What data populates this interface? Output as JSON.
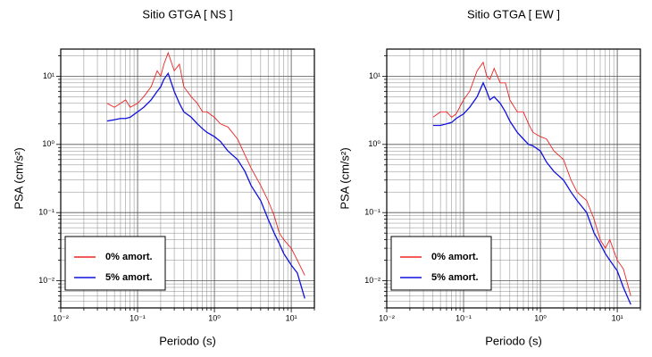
{
  "chart_data": [
    {
      "type": "line",
      "title": "Sitio GTGA [ NS ]",
      "x_label": "Periodo (s)",
      "y_label": "PSA (cm/s²)",
      "log_x": true,
      "log_y": true,
      "grid": true,
      "legend": "lower left",
      "xlim": [
        0.01,
        20
      ],
      "ylim": [
        0.004,
        25
      ],
      "xticks": [
        {
          "value": 0.01,
          "label": "10⁻²"
        },
        {
          "value": 0.02,
          "label": null
        },
        {
          "value": 0.03,
          "label": null
        },
        {
          "value": 0.04,
          "label": null
        },
        {
          "value": 0.05,
          "label": null
        },
        {
          "value": 0.06,
          "label": null
        },
        {
          "value": 0.07,
          "label": null
        },
        {
          "value": 0.08,
          "label": null
        },
        {
          "value": 0.09,
          "label": null
        },
        {
          "value": 0.1,
          "label": "10⁻¹"
        },
        {
          "value": 0.2,
          "label": null
        },
        {
          "value": 0.3,
          "label": null
        },
        {
          "value": 0.4,
          "label": null
        },
        {
          "value": 0.5,
          "label": null
        },
        {
          "value": 0.6,
          "label": null
        },
        {
          "value": 0.7,
          "label": null
        },
        {
          "value": 0.8,
          "label": null
        },
        {
          "value": 0.9,
          "label": null
        },
        {
          "value": 1,
          "label": "10⁰"
        },
        {
          "value": 2,
          "label": null
        },
        {
          "value": 3,
          "label": null
        },
        {
          "value": 4,
          "label": null
        },
        {
          "value": 5,
          "label": null
        },
        {
          "value": 6,
          "label": null
        },
        {
          "value": 7,
          "label": null
        },
        {
          "value": 8,
          "label": null
        },
        {
          "value": 9,
          "label": null
        },
        {
          "value": 10,
          "label": "10¹"
        },
        {
          "value": 20,
          "label": null
        }
      ],
      "yticks": [
        {
          "value": 0.004,
          "label": null
        },
        {
          "value": 0.005,
          "label": null
        },
        {
          "value": 0.006,
          "label": null
        },
        {
          "value": 0.007,
          "label": null
        },
        {
          "value": 0.008,
          "label": null
        },
        {
          "value": 0.009,
          "label": null
        },
        {
          "value": 0.01,
          "label": "10⁻²"
        },
        {
          "value": 0.02,
          "label": null
        },
        {
          "value": 0.03,
          "label": null
        },
        {
          "value": 0.04,
          "label": null
        },
        {
          "value": 0.05,
          "label": null
        },
        {
          "value": 0.06,
          "label": null
        },
        {
          "value": 0.07,
          "label": null
        },
        {
          "value": 0.08,
          "label": null
        },
        {
          "value": 0.09,
          "label": null
        },
        {
          "value": 0.1,
          "label": "10⁻¹"
        },
        {
          "value": 0.2,
          "label": null
        },
        {
          "value": 0.3,
          "label": null
        },
        {
          "value": 0.4,
          "label": null
        },
        {
          "value": 0.5,
          "label": null
        },
        {
          "value": 0.6,
          "label": null
        },
        {
          "value": 0.7,
          "label": null
        },
        {
          "value": 0.8,
          "label": null
        },
        {
          "value": 0.9,
          "label": null
        },
        {
          "value": 1,
          "label": "10⁰"
        },
        {
          "value": 2,
          "label": null
        },
        {
          "value": 3,
          "label": null
        },
        {
          "value": 4,
          "label": null
        },
        {
          "value": 5,
          "label": null
        },
        {
          "value": 6,
          "label": null
        },
        {
          "value": 7,
          "label": null
        },
        {
          "value": 8,
          "label": null
        },
        {
          "value": 9,
          "label": null
        },
        {
          "value": 10,
          "label": "10¹"
        },
        {
          "value": 20,
          "label": null
        }
      ],
      "x": [
        0.04,
        0.05,
        0.06,
        0.07,
        0.08,
        0.1,
        0.12,
        0.15,
        0.18,
        0.2,
        0.22,
        0.25,
        0.3,
        0.35,
        0.4,
        0.5,
        0.6,
        0.7,
        0.8,
        1,
        1.2,
        1.5,
        2,
        2.5,
        3,
        4,
        5,
        6,
        7,
        8,
        10,
        12,
        15
      ],
      "series": [
        {
          "name": "0% amort.",
          "color": "#ee2222",
          "values": [
            4,
            3.5,
            4,
            4.5,
            3.5,
            4,
            5,
            7,
            12,
            10,
            15,
            22,
            12,
            15,
            7,
            5,
            4,
            3,
            3,
            2.5,
            2,
            1.8,
            1.2,
            0.7,
            0.45,
            0.25,
            0.15,
            0.09,
            0.05,
            0.04,
            0.03,
            0.02,
            0.012
          ]
        },
        {
          "name": "5% amort.",
          "color": "#1111dd",
          "values": [
            2.2,
            2.3,
            2.4,
            2.4,
            2.5,
            3,
            3.5,
            4.5,
            6,
            7,
            9,
            11,
            6,
            4,
            3,
            2.5,
            2,
            1.7,
            1.5,
            1.3,
            1.1,
            0.8,
            0.6,
            0.4,
            0.25,
            0.15,
            0.08,
            0.05,
            0.035,
            0.025,
            0.017,
            0.013,
            0.0055
          ]
        }
      ]
    },
    {
      "type": "line",
      "title": "Sitio GTGA [ EW ]",
      "x_label": "Periodo (s)",
      "y_label": "PSA (cm/s²)",
      "log_x": true,
      "log_y": true,
      "grid": true,
      "legend": "lower left",
      "xlim": [
        0.01,
        20
      ],
      "ylim": [
        0.004,
        25
      ],
      "xticks": [
        {
          "value": 0.01,
          "label": "10⁻²"
        },
        {
          "value": 0.02,
          "label": null
        },
        {
          "value": 0.03,
          "label": null
        },
        {
          "value": 0.04,
          "label": null
        },
        {
          "value": 0.05,
          "label": null
        },
        {
          "value": 0.06,
          "label": null
        },
        {
          "value": 0.07,
          "label": null
        },
        {
          "value": 0.08,
          "label": null
        },
        {
          "value": 0.09,
          "label": null
        },
        {
          "value": 0.1,
          "label": "10⁻¹"
        },
        {
          "value": 0.2,
          "label": null
        },
        {
          "value": 0.3,
          "label": null
        },
        {
          "value": 0.4,
          "label": null
        },
        {
          "value": 0.5,
          "label": null
        },
        {
          "value": 0.6,
          "label": null
        },
        {
          "value": 0.7,
          "label": null
        },
        {
          "value": 0.8,
          "label": null
        },
        {
          "value": 0.9,
          "label": null
        },
        {
          "value": 1,
          "label": "10⁰"
        },
        {
          "value": 2,
          "label": null
        },
        {
          "value": 3,
          "label": null
        },
        {
          "value": 4,
          "label": null
        },
        {
          "value": 5,
          "label": null
        },
        {
          "value": 6,
          "label": null
        },
        {
          "value": 7,
          "label": null
        },
        {
          "value": 8,
          "label": null
        },
        {
          "value": 9,
          "label": null
        },
        {
          "value": 10,
          "label": "10¹"
        },
        {
          "value": 20,
          "label": null
        }
      ],
      "yticks": [
        {
          "value": 0.004,
          "label": null
        },
        {
          "value": 0.005,
          "label": null
        },
        {
          "value": 0.006,
          "label": null
        },
        {
          "value": 0.007,
          "label": null
        },
        {
          "value": 0.008,
          "label": null
        },
        {
          "value": 0.009,
          "label": null
        },
        {
          "value": 0.01,
          "label": "10⁻²"
        },
        {
          "value": 0.02,
          "label": null
        },
        {
          "value": 0.03,
          "label": null
        },
        {
          "value": 0.04,
          "label": null
        },
        {
          "value": 0.05,
          "label": null
        },
        {
          "value": 0.06,
          "label": null
        },
        {
          "value": 0.07,
          "label": null
        },
        {
          "value": 0.08,
          "label": null
        },
        {
          "value": 0.09,
          "label": null
        },
        {
          "value": 0.1,
          "label": "10⁻¹"
        },
        {
          "value": 0.2,
          "label": null
        },
        {
          "value": 0.3,
          "label": null
        },
        {
          "value": 0.4,
          "label": null
        },
        {
          "value": 0.5,
          "label": null
        },
        {
          "value": 0.6,
          "label": null
        },
        {
          "value": 0.7,
          "label": null
        },
        {
          "value": 0.8,
          "label": null
        },
        {
          "value": 0.9,
          "label": null
        },
        {
          "value": 1,
          "label": "10⁰"
        },
        {
          "value": 2,
          "label": null
        },
        {
          "value": 3,
          "label": null
        },
        {
          "value": 4,
          "label": null
        },
        {
          "value": 5,
          "label": null
        },
        {
          "value": 6,
          "label": null
        },
        {
          "value": 7,
          "label": null
        },
        {
          "value": 8,
          "label": null
        },
        {
          "value": 9,
          "label": null
        },
        {
          "value": 10,
          "label": "10¹"
        },
        {
          "value": 20,
          "label": null
        }
      ],
      "x": [
        0.04,
        0.05,
        0.06,
        0.07,
        0.08,
        0.1,
        0.12,
        0.15,
        0.18,
        0.2,
        0.22,
        0.25,
        0.3,
        0.35,
        0.4,
        0.5,
        0.6,
        0.7,
        0.8,
        1,
        1.2,
        1.5,
        2,
        2.5,
        3,
        4,
        5,
        6,
        7,
        8,
        10,
        12,
        15
      ],
      "series": [
        {
          "name": "0% amort.",
          "color": "#ee2222",
          "values": [
            2.5,
            3,
            3,
            2.5,
            2.8,
            4.5,
            6,
            12,
            16,
            10,
            9,
            13,
            8,
            8,
            4.5,
            3,
            3,
            2,
            1.5,
            1.3,
            1.2,
            0.8,
            0.6,
            0.3,
            0.2,
            0.15,
            0.08,
            0.04,
            0.03,
            0.04,
            0.02,
            0.015,
            0.006
          ]
        },
        {
          "name": "5% amort.",
          "color": "#1111dd",
          "values": [
            1.9,
            1.9,
            2,
            2.1,
            2.4,
            2.8,
            3.5,
            5,
            8,
            6,
            4.5,
            5,
            4,
            3,
            2.2,
            1.5,
            1.2,
            1,
            0.95,
            0.8,
            0.55,
            0.4,
            0.3,
            0.2,
            0.15,
            0.1,
            0.05,
            0.035,
            0.025,
            0.02,
            0.014,
            0.008,
            0.0045
          ]
        }
      ]
    }
  ]
}
